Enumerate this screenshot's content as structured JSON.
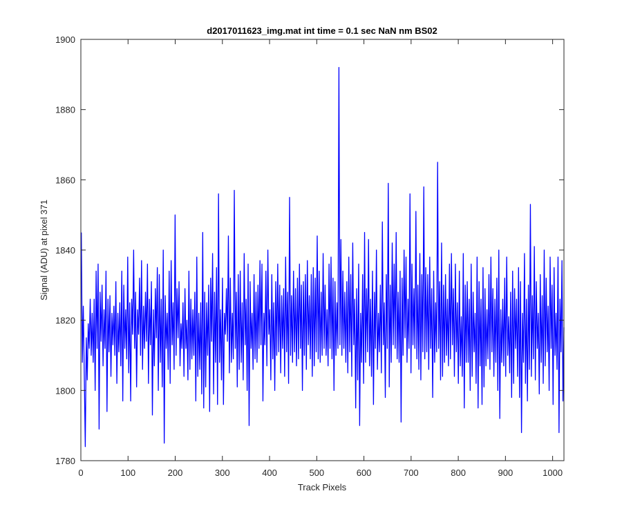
{
  "chart_data": {
    "type": "line",
    "title": "d2017011623_img.mat int time = 0.1 sec  NaN nm BS02",
    "xlabel": "Track Pixels",
    "ylabel": "Signal (ADU) at pixel 371",
    "xlim": [
      0,
      1024
    ],
    "ylim": [
      1780,
      1900
    ],
    "xticks": [
      0,
      100,
      200,
      300,
      400,
      500,
      600,
      700,
      800,
      900,
      1000
    ],
    "yticks": [
      1780,
      1800,
      1820,
      1840,
      1860,
      1880,
      1900
    ],
    "grid": false,
    "line_color": "#0000ff",
    "series": [
      {
        "x_start": 1,
        "x_step": 1,
        "values": [
          1845,
          1808,
          1824,
          1804,
          1784,
          1815,
          1803,
          1819,
          1812,
          1826,
          1810,
          1822,
          1808,
          1826,
          1800,
          1834,
          1812,
          1836,
          1789,
          1828,
          1814,
          1830,
          1807,
          1823,
          1812,
          1834,
          1794,
          1826,
          1811,
          1827,
          1804,
          1822,
          1813,
          1824,
          1810,
          1831,
          1802,
          1822,
          1811,
          1825,
          1807,
          1834,
          1797,
          1830,
          1812,
          1823,
          1809,
          1838,
          1805,
          1825,
          1797,
          1826,
          1816,
          1840,
          1812,
          1828,
          1801,
          1823,
          1816,
          1832,
          1810,
          1837,
          1806,
          1824,
          1812,
          1828,
          1814,
          1836,
          1802,
          1826,
          1813,
          1831,
          1793,
          1823,
          1807,
          1829,
          1815,
          1835,
          1800,
          1833,
          1808,
          1826,
          1801,
          1840,
          1785,
          1827,
          1812,
          1822,
          1806,
          1834,
          1802,
          1837,
          1813,
          1825,
          1806,
          1850,
          1810,
          1829,
          1815,
          1831,
          1807,
          1819,
          1812,
          1825,
          1804,
          1829,
          1812,
          1820,
          1803,
          1834,
          1806,
          1826,
          1809,
          1823,
          1810,
          1828,
          1797,
          1838,
          1804,
          1822,
          1806,
          1825,
          1799,
          1845,
          1795,
          1828,
          1801,
          1825,
          1810,
          1830,
          1794,
          1832,
          1814,
          1839,
          1799,
          1828,
          1808,
          1835,
          1796,
          1856,
          1808,
          1823,
          1803,
          1832,
          1796,
          1822,
          1816,
          1829,
          1814,
          1844,
          1805,
          1832,
          1808,
          1822,
          1809,
          1857,
          1812,
          1828,
          1801,
          1833,
          1806,
          1834,
          1808,
          1825,
          1803,
          1839,
          1813,
          1826,
          1800,
          1836,
          1790,
          1831,
          1812,
          1822,
          1806,
          1833,
          1809,
          1828,
          1808,
          1830,
          1812,
          1837,
          1813,
          1836,
          1797,
          1822,
          1813,
          1834,
          1807,
          1840,
          1816,
          1823,
          1803,
          1833,
          1809,
          1825,
          1800,
          1831,
          1810,
          1836,
          1811,
          1830,
          1805,
          1827,
          1812,
          1829,
          1804,
          1838,
          1811,
          1828,
          1802,
          1855,
          1810,
          1827,
          1808,
          1834,
          1811,
          1829,
          1807,
          1832,
          1809,
          1836,
          1812,
          1830,
          1800,
          1831,
          1810,
          1833,
          1806,
          1837,
          1813,
          1827,
          1809,
          1833,
          1804,
          1835,
          1807,
          1832,
          1811,
          1844,
          1809,
          1834,
          1808,
          1828,
          1810,
          1839,
          1812,
          1830,
          1810,
          1823,
          1807,
          1836,
          1812,
          1838,
          1809,
          1832,
          1800,
          1831,
          1810,
          1825,
          1812,
          1892,
          1813,
          1843,
          1810,
          1834,
          1812,
          1828,
          1808,
          1831,
          1805,
          1838,
          1811,
          1833,
          1804,
          1842,
          1813,
          1826,
          1795,
          1829,
          1803,
          1836,
          1790,
          1822,
          1808,
          1833,
          1802,
          1845,
          1808,
          1829,
          1811,
          1843,
          1807,
          1826,
          1804,
          1834,
          1796,
          1828,
          1812,
          1840,
          1806,
          1822,
          1811,
          1830,
          1805,
          1848,
          1813,
          1825,
          1798,
          1833,
          1812,
          1859,
          1801,
          1830,
          1808,
          1842,
          1813,
          1836,
          1812,
          1845,
          1809,
          1828,
          1808,
          1834,
          1791,
          1832,
          1810,
          1840,
          1815,
          1838,
          1808,
          1826,
          1812,
          1856,
          1805,
          1836,
          1813,
          1829,
          1812,
          1851,
          1809,
          1830,
          1806,
          1839,
          1803,
          1833,
          1811,
          1858,
          1809,
          1835,
          1811,
          1833,
          1806,
          1838,
          1812,
          1829,
          1798,
          1834,
          1808,
          1825,
          1811,
          1865,
          1812,
          1831,
          1803,
          1842,
          1804,
          1830,
          1808,
          1833,
          1810,
          1826,
          1807,
          1836,
          1809,
          1839,
          1813,
          1829,
          1804,
          1836,
          1811,
          1825,
          1802,
          1834,
          1807,
          1821,
          1804,
          1839,
          1795,
          1830,
          1808,
          1831,
          1808,
          1826,
          1800,
          1836,
          1804,
          1828,
          1811,
          1822,
          1802,
          1838,
          1795,
          1831,
          1807,
          1826,
          1796,
          1835,
          1801,
          1829,
          1807,
          1823,
          1809,
          1833,
          1806,
          1838,
          1811,
          1829,
          1804,
          1826,
          1808,
          1832,
          1800,
          1840,
          1792,
          1823,
          1808,
          1826,
          1807,
          1832,
          1804,
          1838,
          1810,
          1821,
          1805,
          1828,
          1798,
          1834,
          1802,
          1829,
          1812,
          1826,
          1804,
          1835,
          1798,
          1831,
          1788,
          1822,
          1808,
          1839,
          1802,
          1826,
          1797,
          1830,
          1806,
          1853,
          1804,
          1827,
          1809,
          1841,
          1803,
          1831,
          1812,
          1822,
          1799,
          1833,
          1808,
          1827,
          1802,
          1840,
          1807,
          1832,
          1811,
          1824,
          1800,
          1838,
          1812,
          1830,
          1796,
          1835,
          1810,
          1822,
          1806,
          1838,
          1788,
          1826,
          1811,
          1837,
          1797,
          1818
        ]
      }
    ]
  }
}
